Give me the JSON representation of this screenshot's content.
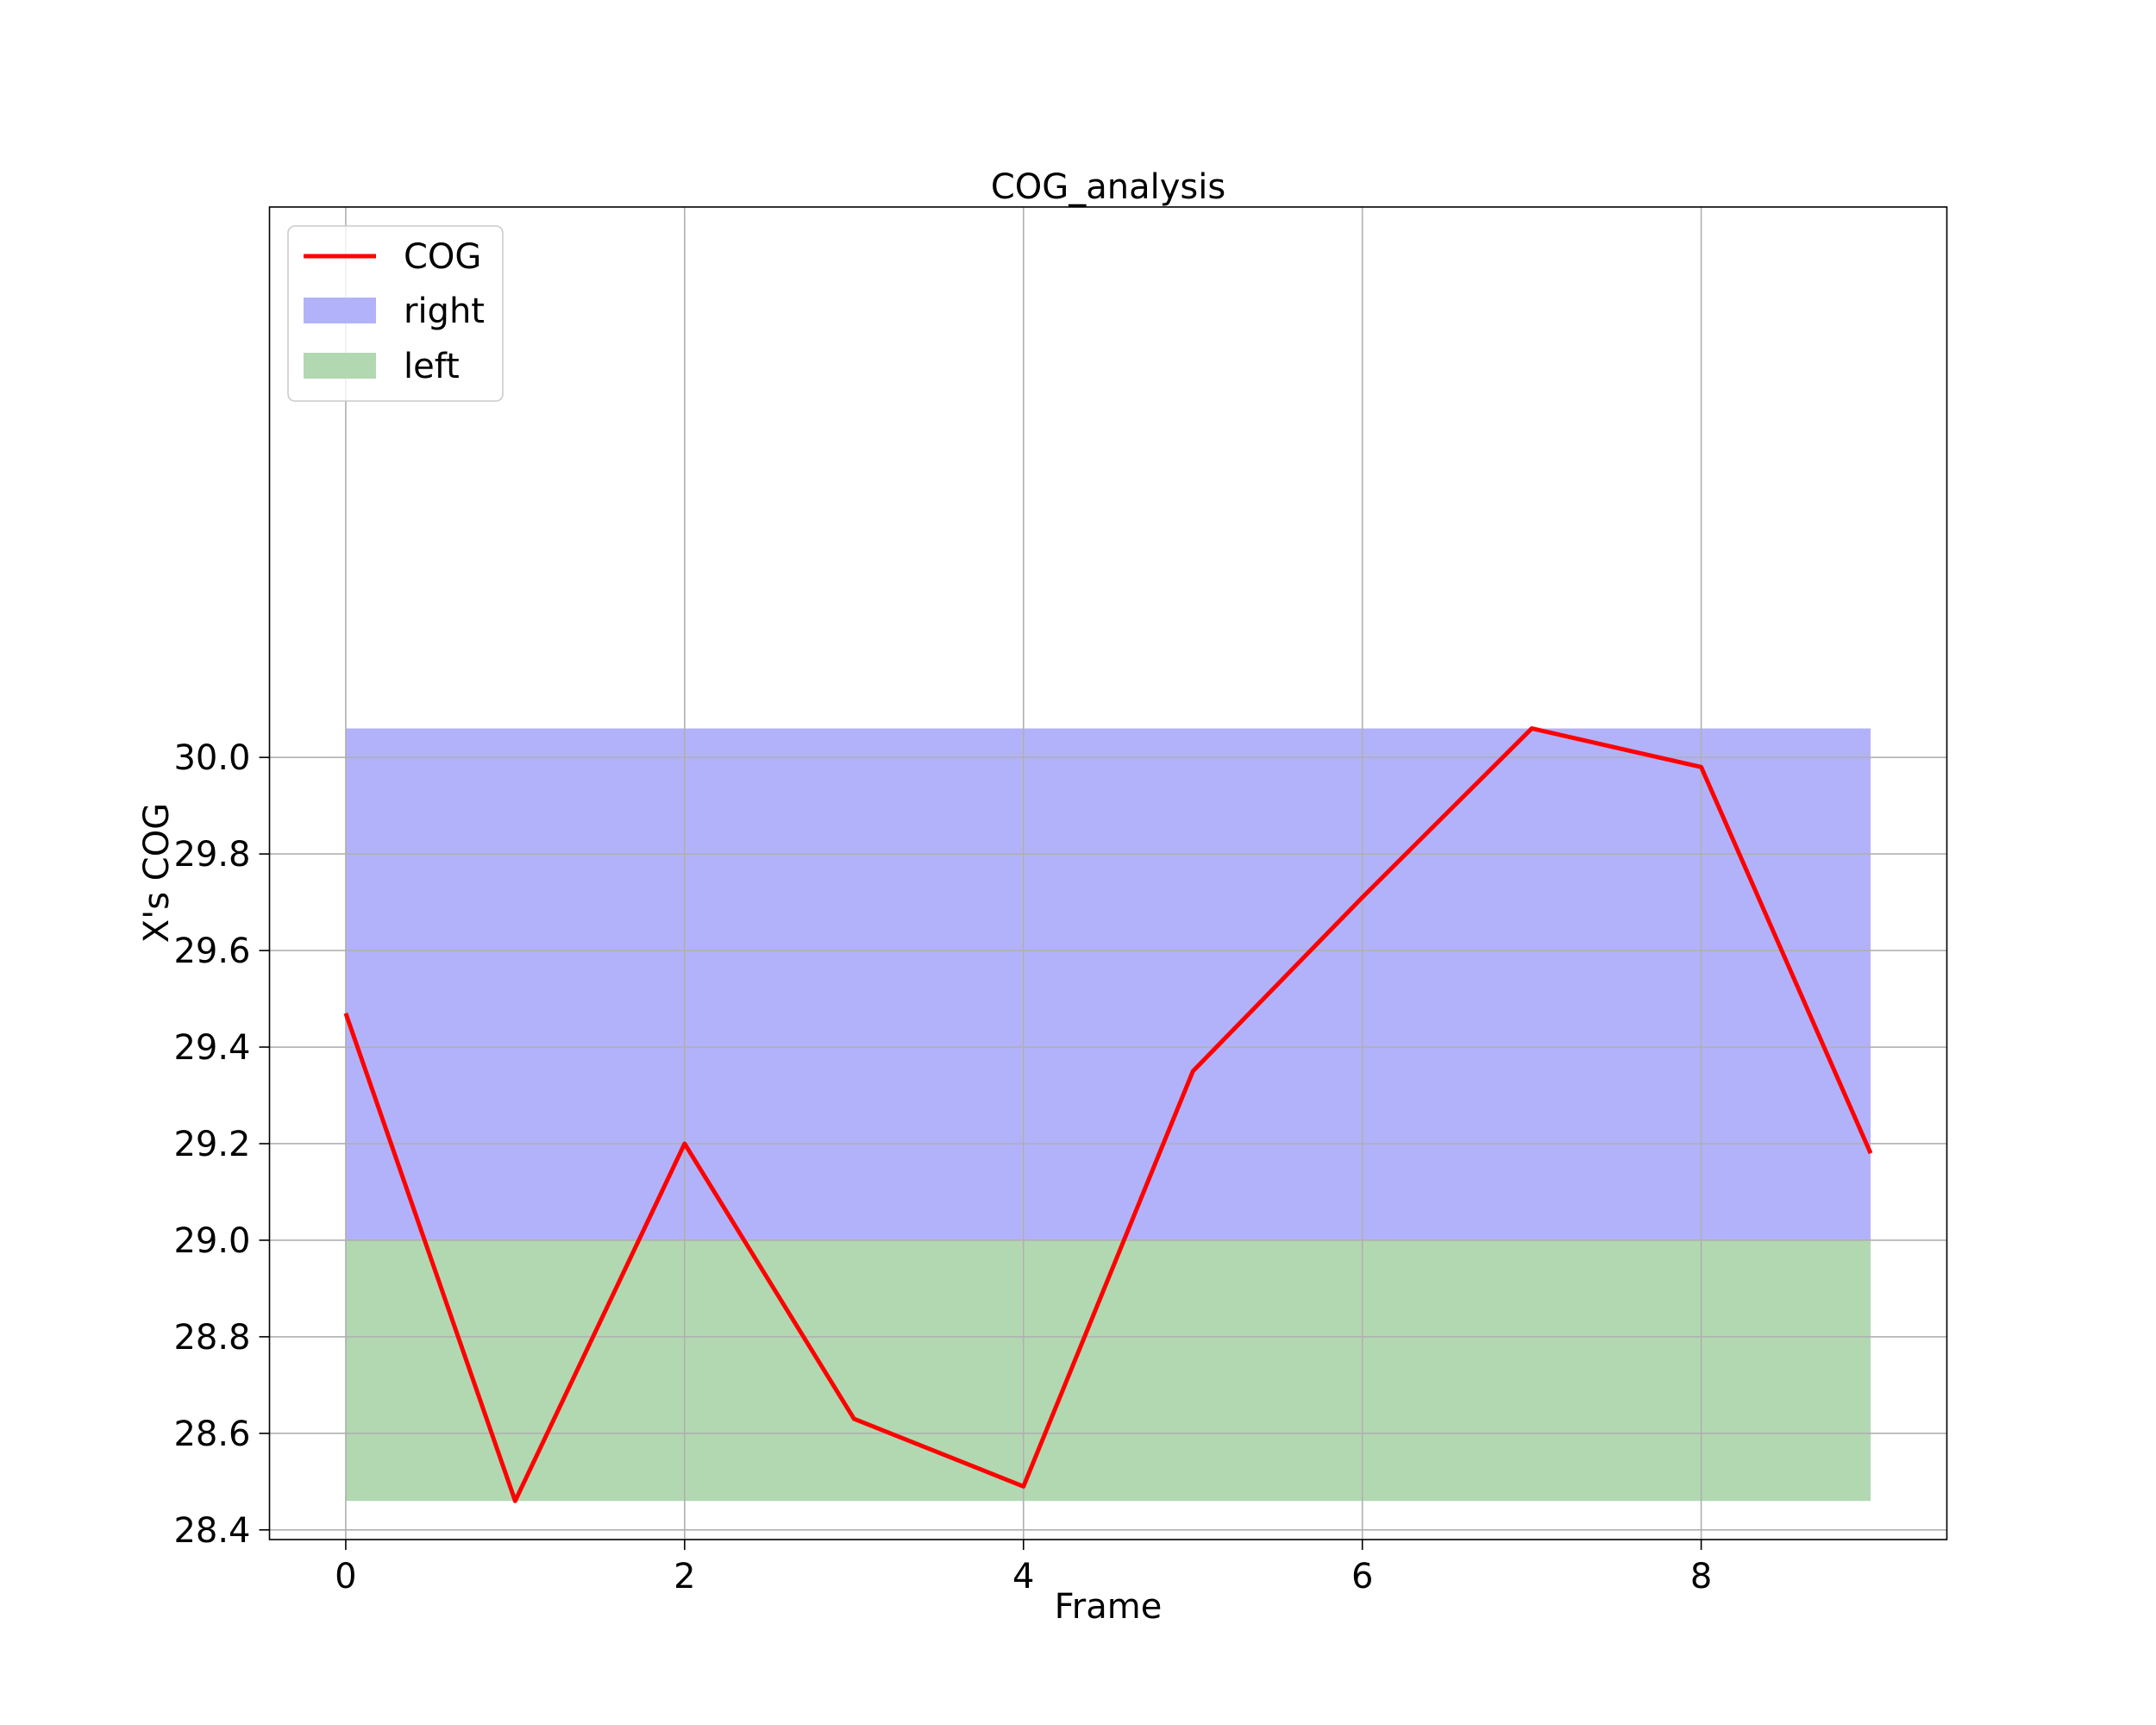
{
  "chart_data": {
    "type": "line",
    "title": "COG_analysis",
    "xlabel": "Frame",
    "ylabel": "X's COG",
    "xlim": [
      -0.45,
      9.45
    ],
    "ylim": [
      28.38,
      31.14
    ],
    "xticks": [
      0,
      2,
      4,
      6,
      8
    ],
    "xtick_labels": [
      "0",
      "2",
      "4",
      "6",
      "8"
    ],
    "yticks": [
      28.4,
      28.6,
      28.8,
      29.0,
      29.2,
      29.4,
      29.6,
      29.8,
      30.0
    ],
    "ytick_labels": [
      "28.4",
      "28.6",
      "28.8",
      "29.0",
      "29.2",
      "29.4",
      "29.6",
      "29.8",
      "30.0"
    ],
    "grid": true,
    "legend_position": "upper-left",
    "series": [
      {
        "name": "COG",
        "kind": "line",
        "color": "#ff0000",
        "x": [
          0,
          1,
          2,
          3,
          4,
          5,
          6,
          7,
          8,
          9
        ],
        "y": [
          29.47,
          28.46,
          29.2,
          28.63,
          28.49,
          29.35,
          29.71,
          30.06,
          29.98,
          29.18
        ]
      },
      {
        "name": "right",
        "kind": "band",
        "color": "#b2b2fa",
        "x_range": [
          0,
          9
        ],
        "y_range": [
          29.0,
          30.06
        ]
      },
      {
        "name": "left",
        "kind": "band",
        "color": "#b2d8b2",
        "x_range": [
          0,
          9
        ],
        "y_range": [
          28.46,
          29.0
        ]
      }
    ],
    "legend": [
      {
        "label": "COG",
        "type": "line",
        "color": "#ff0000"
      },
      {
        "label": "right",
        "type": "patch",
        "color": "#b2b2fa"
      },
      {
        "label": "left",
        "type": "patch",
        "color": "#b2d8b2"
      }
    ]
  }
}
